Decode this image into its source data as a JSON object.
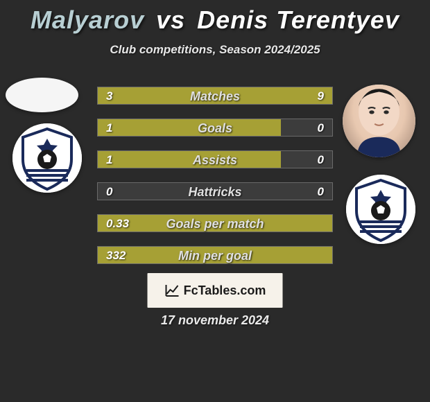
{
  "title": {
    "player1": "Malyarov",
    "vs": "vs",
    "player2": "Denis Terentyev",
    "color_p1": "#b8cfd3",
    "color_vs": "#ffffff",
    "color_p2": "#ffffff"
  },
  "subtitle": "Club competitions, Season 2024/2025",
  "bar_color": "#a6a035",
  "bars": [
    {
      "label": "Matches",
      "left_val": "3",
      "right_val": "9",
      "left_pct": 25,
      "right_pct": 75
    },
    {
      "label": "Goals",
      "left_val": "1",
      "right_val": "0",
      "left_pct": 78,
      "right_pct": 0
    },
    {
      "label": "Assists",
      "left_val": "1",
      "right_val": "0",
      "left_pct": 78,
      "right_pct": 0
    },
    {
      "label": "Hattricks",
      "left_val": "0",
      "right_val": "0",
      "left_pct": 0,
      "right_pct": 0
    },
    {
      "label": "Goals per match",
      "left_val": "0.33",
      "right_val": "",
      "left_pct": 100,
      "right_pct": 0
    },
    {
      "label": "Min per goal",
      "left_val": "332",
      "right_val": "",
      "left_pct": 100,
      "right_pct": 0
    }
  ],
  "branding": "FcTables.com",
  "date": "17 november 2024",
  "colors": {
    "background": "#2a2a2a",
    "bar_track": "#3c3c3c",
    "bar_border": "#6a6a6a",
    "text": "#ffffff"
  }
}
